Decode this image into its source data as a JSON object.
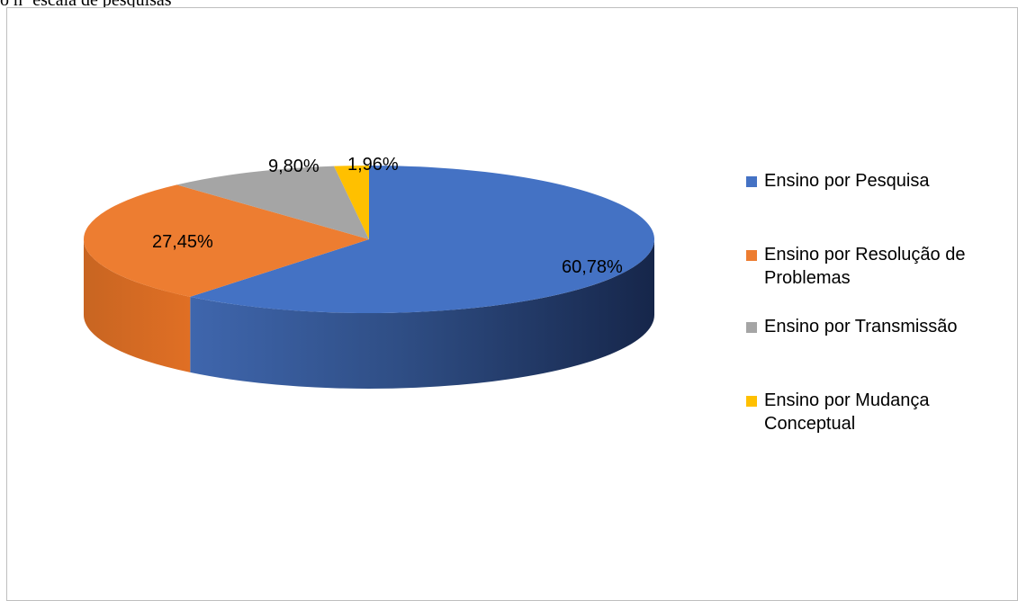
{
  "page": {
    "top_text": "o nº escala de pesquisas"
  },
  "chart_data": {
    "type": "pie",
    "style": "3d",
    "title": "",
    "categories": [
      "Ensino por Pesquisa",
      "Ensino por Resolução de Problemas",
      "Ensino por Transmissão",
      "Ensino por Mudança Conceptual"
    ],
    "values": [
      60.78,
      27.45,
      9.8,
      1.96
    ],
    "data_labels": [
      "60,78%",
      "27,45%",
      "9,80%",
      "1,96%"
    ],
    "colors": [
      "#4472c4",
      "#ed7d31",
      "#a5a5a5",
      "#ffc000"
    ],
    "legend": {
      "position": "right",
      "entries": [
        {
          "label": "Ensino por Pesquisa",
          "color": "#4472c4"
        },
        {
          "label": "Ensino por Resolução de Problemas",
          "color": "#ed7d31"
        },
        {
          "label": "Ensino por Transmissão",
          "color": "#a5a5a5"
        },
        {
          "label": "Ensino por Mudança Conceptual",
          "color": "#ffc000"
        }
      ]
    }
  }
}
